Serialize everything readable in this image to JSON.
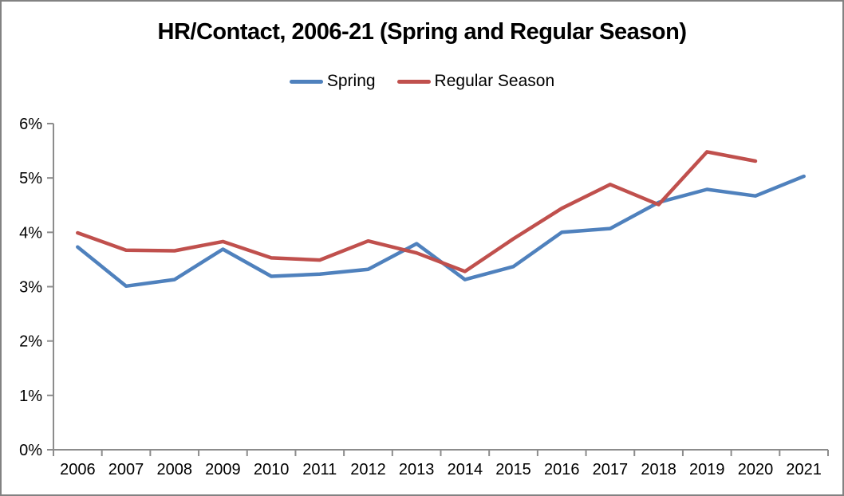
{
  "window": {
    "background": "#FFFFFF",
    "border_color": "#828282"
  },
  "chart_data": {
    "type": "line",
    "title": "HR/Contact, 2006-21 (Spring and Regular Season)",
    "categories": [
      "2006",
      "2007",
      "2008",
      "2009",
      "2010",
      "2011",
      "2012",
      "2013",
      "2014",
      "2015",
      "2016",
      "2017",
      "2018",
      "2019",
      "2020",
      "2021"
    ],
    "series": [
      {
        "name": "Spring",
        "color": "#4F81BD",
        "values": [
          3.73,
          3.01,
          3.13,
          3.69,
          3.19,
          3.23,
          3.32,
          3.79,
          3.13,
          3.37,
          4.0,
          4.07,
          4.55,
          4.79,
          4.67,
          5.03
        ]
      },
      {
        "name": "Regular Season",
        "color": "#C0504D",
        "values": [
          3.99,
          3.67,
          3.66,
          3.83,
          3.53,
          3.49,
          3.84,
          3.62,
          3.28,
          3.88,
          4.44,
          4.88,
          4.51,
          5.48,
          5.31,
          null
        ]
      }
    ],
    "ylim": [
      0,
      6
    ],
    "y_tick_labels": [
      "0%",
      "1%",
      "2%",
      "3%",
      "4%",
      "5%",
      "6%"
    ],
    "y_unit": "%",
    "xlabel": "",
    "ylabel": "",
    "grid": false,
    "legend_position": "top",
    "colors": {
      "axis": "#8C8C8C",
      "text": "#000000"
    }
  }
}
